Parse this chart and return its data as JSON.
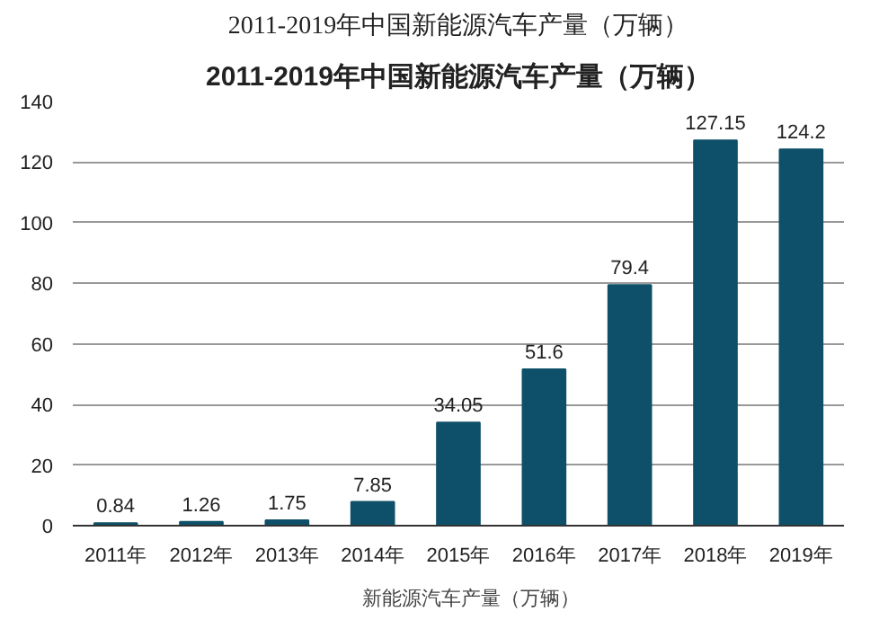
{
  "chart_data": {
    "type": "bar",
    "title": "2011-2019年中国新能源汽车产量（万辆）",
    "subtitle": "2011-2019年中国新能源汽车产量（万辆）",
    "categories": [
      "2011年",
      "2012年",
      "2013年",
      "2014年",
      "2015年",
      "2016年",
      "2017年",
      "2018年",
      "2019年"
    ],
    "series": [
      {
        "name": "新能源汽车产量（万辆）",
        "color": "#0e5069",
        "values": [
          0.84,
          1.26,
          1.75,
          7.85,
          34.05,
          51.6,
          79.4,
          127.15,
          124.2
        ]
      }
    ],
    "ylim": [
      0,
      140
    ],
    "yticks": [
      0,
      20,
      40,
      60,
      80,
      100,
      120,
      140
    ],
    "grid": "y",
    "legend": "bottom",
    "data_labels": true
  }
}
